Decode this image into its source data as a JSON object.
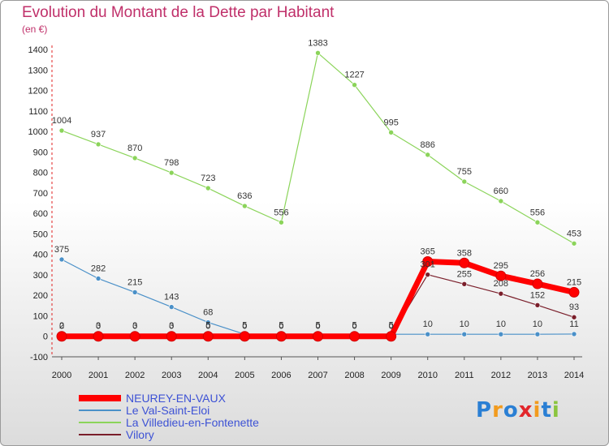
{
  "header": {
    "title": "Evolution du Montant de la Dette par Habitant",
    "subtitle": "(en €)"
  },
  "logo": {
    "text": "Proxiti",
    "colors": [
      "#2a7fd4",
      "#f29b1e",
      "#2a7fd4",
      "#e2262b",
      "#f29b1e",
      "#2a7fd4",
      "#8bc53f"
    ]
  },
  "chart_data": {
    "type": "line",
    "title": "Evolution du Montant de la Dette par Habitant",
    "ylabel": "(en €)",
    "xlabel": "",
    "x": [
      "2000",
      "2001",
      "2002",
      "2003",
      "2004",
      "2005",
      "2006",
      "2007",
      "2008",
      "2009",
      "2010",
      "2011",
      "2012",
      "2013",
      "2014"
    ],
    "ylim": [
      -100,
      1400
    ],
    "yticks": [
      "-100",
      "0",
      "100",
      "200",
      "300",
      "400",
      "500",
      "600",
      "700",
      "800",
      "900",
      "1000",
      "1100",
      "1200",
      "1300",
      "1400"
    ],
    "grid": false,
    "legend_position": "bottom-left",
    "series": [
      {
        "name": "NEUREY-EN-VAUX",
        "color": "#ff0000",
        "values": [
          0,
          0,
          0,
          0,
          0,
          0,
          0,
          0,
          0,
          0,
          365,
          358,
          295,
          256,
          215
        ],
        "labels": [
          "0",
          "0",
          "0",
          "0",
          "0",
          "0",
          "0",
          "0",
          "0",
          "0",
          "365",
          "358",
          "295",
          "256",
          "215"
        ]
      },
      {
        "name": "Le Val-Saint-Eloi",
        "color": "#4a90c8",
        "values": [
          375,
          282,
          215,
          143,
          68,
          10,
          10,
          10,
          10,
          10,
          10,
          10,
          10,
          10,
          11
        ],
        "labels": [
          "375",
          "282",
          "215",
          "143",
          "68",
          "",
          "",
          "",
          "",
          "",
          "10",
          "10",
          "10",
          "10",
          "11"
        ]
      },
      {
        "name": "La Villedieu-en-Fontenette",
        "color": "#8bd45a",
        "values": [
          1004,
          937,
          870,
          798,
          723,
          636,
          556,
          1383,
          1227,
          995,
          886,
          755,
          660,
          556,
          453
        ],
        "labels": [
          "1004",
          "937",
          "870",
          "798",
          "723",
          "636",
          "556",
          "1383",
          "1227",
          "995",
          "886",
          "755",
          "660",
          "556",
          "453"
        ]
      },
      {
        "name": "Vilory",
        "color": "#7a1e2a",
        "values": [
          2,
          3,
          3,
          3,
          5,
          5,
          5,
          5,
          5,
          5,
          301,
          255,
          208,
          152,
          93
        ],
        "labels": [
          "2",
          "3",
          "3",
          "3",
          "5",
          "5",
          "5",
          "5",
          "5",
          "5",
          "301",
          "255",
          "208",
          "152",
          "93"
        ]
      }
    ]
  }
}
